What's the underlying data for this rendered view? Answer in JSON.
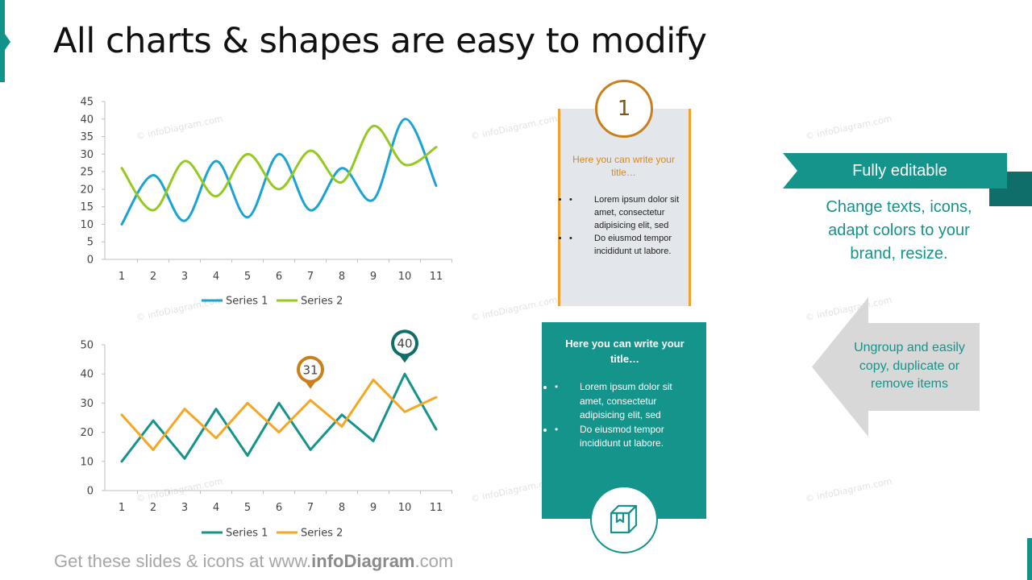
{
  "title": "All charts & shapes are easy to modify",
  "watermark": "© infoDiagram.com",
  "chart_data": [
    {
      "type": "line",
      "smooth": true,
      "x": [
        1,
        2,
        3,
        4,
        5,
        6,
        7,
        8,
        9,
        10,
        11
      ],
      "series": [
        {
          "name": "Series 1",
          "values": [
            10,
            24,
            11,
            28,
            12,
            30,
            14,
            26,
            17,
            40,
            21
          ],
          "color": "#1aa3d4"
        },
        {
          "name": "Series 2",
          "values": [
            26,
            14,
            28,
            18,
            30,
            20,
            31,
            22,
            38,
            27,
            32
          ],
          "color": "#94c91f"
        }
      ],
      "ylim": [
        0,
        45
      ],
      "yticks": [
        0,
        5,
        10,
        15,
        20,
        25,
        30,
        35,
        40,
        45
      ],
      "legend": "bottom",
      "grid": false
    },
    {
      "type": "line",
      "smooth": false,
      "x": [
        1,
        2,
        3,
        4,
        5,
        6,
        7,
        8,
        9,
        10,
        11
      ],
      "series": [
        {
          "name": "Series 1",
          "values": [
            10,
            24,
            11,
            28,
            12,
            30,
            14,
            26,
            17,
            40,
            21
          ],
          "color": "#14948b"
        },
        {
          "name": "Series 2",
          "values": [
            26,
            14,
            28,
            18,
            30,
            20,
            31,
            22,
            38,
            27,
            32
          ],
          "color": "#f5a623"
        }
      ],
      "ylim": [
        0,
        50
      ],
      "yticks": [
        0,
        10,
        20,
        30,
        40,
        50
      ],
      "legend": "bottom",
      "grid": false,
      "callouts": [
        {
          "label": "31",
          "x": 7,
          "y": 31,
          "color": "#c9801c"
        },
        {
          "label": "40",
          "x": 10,
          "y": 40,
          "color": "#0f6e67"
        }
      ]
    }
  ],
  "card1": {
    "number": "1",
    "title": "Here you can write your title…",
    "items": [
      "Lorem ipsum dolor sit amet, consectetur adipisicing elit, sed",
      "Do eiusmod tempor incididunt ut labore."
    ],
    "accent": "#f0a22c"
  },
  "card2": {
    "title": "Here you can write your title…",
    "items": [
      "Lorem ipsum dolor sit amet, consectetur adipisicing elit, sed",
      "Do eiusmod tempor incididunt ut labore."
    ],
    "icon": "box-icon",
    "accent": "#14948b"
  },
  "ribbon": {
    "label": "Fully editable",
    "text": "Change texts, icons, adapt colors to your brand, resize."
  },
  "arrow": {
    "text": "Ungroup and easily copy, duplicate or remove items"
  },
  "footer": {
    "prefix": "Get these slides & icons at www.",
    "brand": "infoDiagram",
    "suffix": ".com"
  }
}
